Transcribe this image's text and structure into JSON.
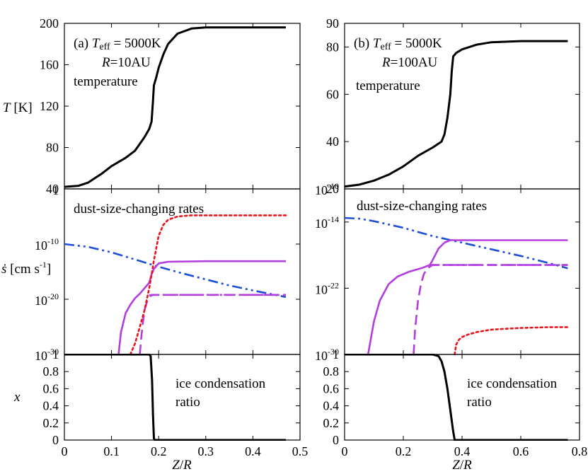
{
  "colors": {
    "black": "#000000",
    "blue": "#1f4fd6",
    "purple": "#b23ee0",
    "red": "#e8141c"
  },
  "chart_data": [
    {
      "type": "line",
      "id": "a-temp",
      "title": "(a) T_eff = 5000K, R=10AU",
      "label_line1_prefix": "(a) ",
      "label_T": "T",
      "label_eff": "eff",
      "label_line1_suffix": " = 5000K",
      "label_line2_R": "R",
      "label_line2_suffix": "=10AU",
      "panel_label": "temperature",
      "ylabel_T": "T",
      "ylabel_unit": " [K]",
      "xlim": [
        0,
        0.5
      ],
      "ylim": [
        40,
        200
      ],
      "yscale": "linear",
      "yticks": [
        40,
        80,
        120,
        160,
        200
      ],
      "yticklabels": [
        "40",
        "80",
        "120",
        "160",
        "200"
      ],
      "series": [
        {
          "name": "temperature",
          "color": "black",
          "style": "solid",
          "x": [
            0,
            0.03,
            0.05,
            0.08,
            0.1,
            0.13,
            0.15,
            0.17,
            0.18,
            0.185,
            0.188,
            0.19,
            0.195,
            0.2,
            0.21,
            0.22,
            0.24,
            0.27,
            0.3,
            0.35,
            0.4,
            0.47
          ],
          "y": [
            42,
            43,
            46,
            55,
            62,
            70,
            77,
            90,
            98,
            105,
            125,
            140,
            148,
            157,
            170,
            180,
            190,
            195,
            196,
            196,
            196,
            196
          ]
        }
      ]
    },
    {
      "type": "line",
      "id": "a-rates",
      "panel_label": "dust-size-changing rates",
      "ylabel_s": "ṡ",
      "ylabel_unit": " [cm s",
      "ylabel_exp": "-1",
      "ylabel_close": "]",
      "xlim": [
        0,
        0.5
      ],
      "ylim_log10": [
        -30,
        0
      ],
      "yscale": "log",
      "yticks_log10": [
        0,
        -10,
        -20,
        -30
      ],
      "yticklabels": [
        {
          "base": "1",
          "exp": ""
        },
        {
          "base": "10",
          "exp": "-10"
        },
        {
          "base": "10",
          "exp": "-20"
        },
        {
          "base": "10",
          "exp": "-30"
        }
      ],
      "series": [
        {
          "name": "blue-dashdotdot",
          "color": "blue",
          "style": "dashdotdot",
          "x": [
            0,
            0.05,
            0.1,
            0.15,
            0.2,
            0.25,
            0.3,
            0.35,
            0.4,
            0.47
          ],
          "log10y": [
            -10,
            -10.5,
            -11.5,
            -12.8,
            -14.1,
            -15.3,
            -16.4,
            -17.5,
            -18.4,
            -19.6
          ]
        },
        {
          "name": "purple-solid",
          "color": "purple",
          "style": "solid",
          "x": [
            0.115,
            0.12,
            0.13,
            0.14,
            0.15,
            0.16,
            0.17,
            0.18,
            0.185,
            0.19,
            0.2,
            0.22,
            0.3,
            0.47
          ],
          "log10y": [
            -30,
            -26,
            -22.5,
            -21,
            -19.8,
            -19,
            -18,
            -17,
            -15.5,
            -14.5,
            -13.5,
            -13.2,
            -13.1,
            -13.1
          ]
        },
        {
          "name": "purple-dashed",
          "color": "purple",
          "style": "dashed",
          "x": [
            0.16,
            0.163,
            0.167,
            0.17,
            0.175,
            0.18,
            0.185,
            0.19,
            0.2,
            0.3,
            0.47
          ],
          "log10y": [
            -30,
            -27,
            -24,
            -22,
            -20.5,
            -19.6,
            -19.3,
            -19.2,
            -19.2,
            -19.2,
            -19.2
          ]
        },
        {
          "name": "purple-dashdot",
          "color": "purple",
          "style": "dashdot",
          "x": [
            0.18,
            0.185,
            0.19,
            0.2,
            0.3,
            0.47
          ],
          "log10y": [
            -19.3,
            -19.2,
            -19.2,
            -19.2,
            -19.2,
            -19.2
          ]
        },
        {
          "name": "red-dotted",
          "color": "red",
          "style": "dotted",
          "x": [
            0.14,
            0.15,
            0.16,
            0.17,
            0.18,
            0.19,
            0.2,
            0.21,
            0.22,
            0.24,
            0.27,
            0.3,
            0.4,
            0.47
          ],
          "log10y": [
            -30,
            -28,
            -25,
            -22,
            -18,
            -13,
            -8.5,
            -6.5,
            -5.6,
            -5,
            -4.8,
            -4.8,
            -4.8,
            -4.8
          ]
        }
      ]
    },
    {
      "type": "line",
      "id": "a-ice",
      "panel_label_1": "ice condensation",
      "panel_label_2": "ratio",
      "ylabel": "x",
      "xlabel_Z": "Z",
      "xlabel_R": "R",
      "xlim": [
        0,
        0.5
      ],
      "ylim": [
        0,
        1
      ],
      "yticks": [
        0,
        0.2,
        0.4,
        0.6,
        0.8,
        1
      ],
      "yticklabels": [
        "0",
        "0.2",
        "0.4",
        "0.6",
        "0.8",
        "1"
      ],
      "xticks": [
        0,
        0.1,
        0.2,
        0.3,
        0.4,
        0.5
      ],
      "xticklabels": [
        "0",
        "0.1",
        "0.2",
        "0.3",
        "0.4",
        "0.5"
      ],
      "series": [
        {
          "name": "x",
          "color": "black",
          "style": "solid",
          "x": [
            0,
            0.18,
            0.183,
            0.186,
            0.188,
            0.19,
            0.192,
            0.3,
            0.47
          ],
          "y": [
            1,
            1,
            0.98,
            0.7,
            0.3,
            0.02,
            0,
            0,
            0
          ]
        }
      ]
    },
    {
      "type": "line",
      "id": "b-temp",
      "title": "(b) T_eff = 5000K, R=100AU",
      "label_line1_prefix": "(b) ",
      "label_T": "T",
      "label_eff": "eff",
      "label_line1_suffix": " = 5000K",
      "label_line2_R": "R",
      "label_line2_suffix": "=100AU",
      "panel_label": "temperature",
      "xlim": [
        0,
        0.8
      ],
      "ylim": [
        20,
        90
      ],
      "yscale": "linear",
      "yticks": [
        20,
        40,
        60,
        80,
        90
      ],
      "yticklabels": [
        "20",
        "40",
        "60",
        "80",
        "90"
      ],
      "series": [
        {
          "name": "temperature",
          "color": "black",
          "style": "solid",
          "x": [
            0,
            0.05,
            0.1,
            0.15,
            0.2,
            0.25,
            0.3,
            0.33,
            0.34,
            0.35,
            0.36,
            0.365,
            0.37,
            0.38,
            0.4,
            0.45,
            0.5,
            0.6,
            0.76
          ],
          "y": [
            21,
            21.8,
            23.5,
            26,
            29.5,
            34,
            37.5,
            40,
            43,
            50,
            60,
            70,
            76,
            77.5,
            79,
            81,
            82,
            82.5,
            82.5
          ]
        }
      ]
    },
    {
      "type": "line",
      "id": "b-rates",
      "panel_label": "dust-size-changing rates",
      "xlim": [
        0,
        0.8
      ],
      "ylim_log10": [
        -30,
        -10
      ],
      "yscale": "log",
      "yticks_log10": [
        -10,
        -14,
        -22,
        -30
      ],
      "yticklabels": [
        {
          "base": "10",
          "exp": "-10"
        },
        {
          "base": "10",
          "exp": "-14"
        },
        {
          "base": "10",
          "exp": "-22"
        },
        {
          "base": "10",
          "exp": "-30"
        }
      ],
      "series": [
        {
          "name": "blue-dashdotdot",
          "color": "blue",
          "style": "dashdotdot",
          "x": [
            0,
            0.05,
            0.1,
            0.2,
            0.3,
            0.4,
            0.5,
            0.6,
            0.7,
            0.76
          ],
          "log10y": [
            -13.5,
            -13.6,
            -13.9,
            -14.7,
            -15.7,
            -16.5,
            -17.3,
            -18.1,
            -19,
            -19.6
          ]
        },
        {
          "name": "purple-solid",
          "color": "purple",
          "style": "solid",
          "x": [
            0.08,
            0.1,
            0.12,
            0.15,
            0.18,
            0.22,
            0.26,
            0.29,
            0.3,
            0.32,
            0.34,
            0.36,
            0.4,
            0.5,
            0.76
          ],
          "log10y": [
            -30,
            -26,
            -23.5,
            -21.5,
            -20.6,
            -20,
            -19.6,
            -19.2,
            -18.6,
            -17.2,
            -16.5,
            -16.2,
            -16.2,
            -16.2,
            -16.2
          ]
        },
        {
          "name": "purple-dashed",
          "color": "purple",
          "style": "dashed",
          "x": [
            0.235,
            0.24,
            0.25,
            0.26,
            0.27,
            0.28,
            0.29,
            0.3,
            0.32,
            0.76
          ],
          "log10y": [
            -30,
            -27,
            -23.5,
            -21.5,
            -20.3,
            -19.7,
            -19.4,
            -19.2,
            -19.2,
            -19.2
          ]
        },
        {
          "name": "purple-dashdot",
          "color": "purple",
          "style": "dashdot",
          "x": [
            0.29,
            0.32,
            0.4,
            0.5,
            0.76
          ],
          "log10y": [
            -19.2,
            -19.2,
            -19.2,
            -19.2,
            -19.2
          ]
        },
        {
          "name": "red-dotted",
          "color": "red",
          "style": "dotted",
          "x": [
            0.375,
            0.38,
            0.39,
            0.4,
            0.42,
            0.45,
            0.5,
            0.55,
            0.6,
            0.7,
            0.76
          ],
          "log10y": [
            -30,
            -28.8,
            -28.2,
            -27.9,
            -27.6,
            -27.3,
            -27,
            -26.9,
            -26.8,
            -26.7,
            -26.7
          ]
        }
      ]
    },
    {
      "type": "line",
      "id": "b-ice",
      "panel_label_1": "ice condensation",
      "panel_label_2": "ratio",
      "xlabel_Z": "Z",
      "xlabel_R": "R",
      "xlim": [
        0,
        0.8
      ],
      "ylim": [
        0,
        1
      ],
      "yticks": [
        0,
        0.2,
        0.4,
        0.6,
        0.8,
        1
      ],
      "yticklabels": [
        "0",
        "0.2",
        "0.4",
        "0.6",
        "0.8",
        "1"
      ],
      "xticks": [
        0,
        0.2,
        0.4,
        0.6,
        0.8
      ],
      "xticklabels": [
        "0",
        "0.2",
        "0.4",
        "0.6",
        "0.8"
      ],
      "series": [
        {
          "name": "x",
          "color": "black",
          "style": "solid",
          "x": [
            0,
            0.3,
            0.32,
            0.33,
            0.34,
            0.35,
            0.36,
            0.37,
            0.375,
            0.5,
            0.76
          ],
          "y": [
            1,
            1,
            0.98,
            0.92,
            0.8,
            0.6,
            0.35,
            0.1,
            0,
            0,
            0
          ]
        }
      ]
    }
  ]
}
